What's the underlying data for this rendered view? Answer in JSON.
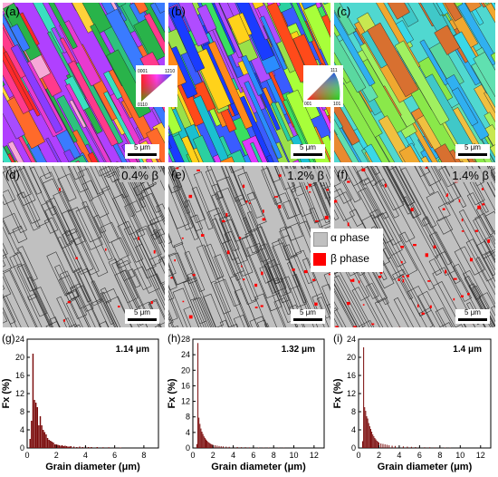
{
  "panels": {
    "a": {
      "label": "(a)",
      "scale": "5 μm"
    },
    "b": {
      "label": "(b)",
      "scale": "5 μm"
    },
    "c": {
      "label": "(c)",
      "scale": "5 μm"
    },
    "d": {
      "label": "(d)",
      "scale": "5 μm",
      "beta": "0.4% β"
    },
    "e": {
      "label": "(e)",
      "scale": "5 μm",
      "beta": "1.2% β"
    },
    "f": {
      "label": "(f)",
      "scale": "5 μm",
      "beta": "1.4% β"
    }
  },
  "ipf_keys": {
    "hex": {
      "top": "0001",
      "right": "1210",
      "bottom": "0110"
    },
    "cubic": {
      "top": "111",
      "left": "001",
      "right": "101"
    }
  },
  "legend": {
    "alpha": {
      "label": "α phase",
      "color": "#c0c0c0"
    },
    "beta": {
      "label": "β phase",
      "color": "#ff0000"
    }
  },
  "chart_data": [
    {
      "type": "bar",
      "panel_label": "(g)",
      "annotation": "1.14 μm",
      "xlabel": "Grain diameter (μm)",
      "ylabel": "Fx (%)",
      "xlim": [
        0,
        9
      ],
      "ylim": [
        0,
        24
      ],
      "xticks": [
        0,
        2,
        4,
        6,
        8
      ],
      "yticks": [
        0,
        4,
        8,
        12,
        16,
        20,
        24
      ],
      "bin_width": 0.1,
      "x": [
        0.2,
        0.3,
        0.4,
        0.5,
        0.6,
        0.7,
        0.8,
        0.9,
        1.0,
        1.1,
        1.2,
        1.3,
        1.4,
        1.5,
        1.6,
        1.7,
        1.8,
        1.9,
        2.0,
        2.1,
        2.2,
        2.3,
        2.4,
        2.5,
        2.6,
        2.7,
        2.8,
        2.9,
        3.0,
        3.2,
        3.4,
        3.6,
        3.8,
        4.0,
        4.2,
        4.4,
        4.8,
        5.2,
        5.6,
        6.0,
        6.4
      ],
      "values": [
        2.0,
        6.0,
        20.8,
        10.6,
        10.0,
        9.0,
        5.0,
        7.0,
        5.0,
        4.0,
        3.5,
        3.0,
        2.2,
        1.8,
        1.6,
        1.4,
        1.2,
        0.8,
        0.8,
        0.7,
        0.6,
        0.5,
        0.6,
        0.4,
        0.5,
        0.4,
        0.3,
        0.3,
        0.4,
        0.3,
        0.2,
        0.3,
        0.2,
        0.3,
        0.2,
        0.2,
        0.2,
        0.15,
        0.15,
        0.1,
        0.1
      ]
    },
    {
      "type": "bar",
      "panel_label": "(h)",
      "annotation": "1.32 μm",
      "xlabel": "Grain diameter (μm)",
      "ylabel": "Fx (%)",
      "xlim": [
        0,
        13
      ],
      "ylim": [
        0,
        28
      ],
      "xticks": [
        0,
        2,
        4,
        6,
        8,
        10,
        12
      ],
      "yticks": [
        0,
        4,
        8,
        12,
        16,
        20,
        24,
        28
      ],
      "bin_width": 0.1,
      "x": [
        0.4,
        0.5,
        0.6,
        0.7,
        0.8,
        0.9,
        1.0,
        1.1,
        1.2,
        1.3,
        1.4,
        1.5,
        1.6,
        1.7,
        1.8,
        1.9,
        2.0,
        2.2,
        2.4,
        2.6,
        2.8,
        3.0,
        3.3,
        3.6,
        4.0,
        4.4,
        4.8,
        5.2,
        5.6,
        6.0,
        6.5,
        7.0,
        7.5,
        8.0,
        8.5,
        9.0
      ],
      "values": [
        1.0,
        27.0,
        7.8,
        6.2,
        5.0,
        4.2,
        3.6,
        3.0,
        2.6,
        2.2,
        1.9,
        1.6,
        1.4,
        1.2,
        1.0,
        0.9,
        0.8,
        0.7,
        0.6,
        0.5,
        0.45,
        0.4,
        0.35,
        0.3,
        0.3,
        0.25,
        0.2,
        0.2,
        0.15,
        0.15,
        0.12,
        0.1,
        0.1,
        0.1,
        0.08,
        0.08
      ]
    },
    {
      "type": "bar",
      "panel_label": "(i)",
      "annotation": "1.4 μm",
      "xlabel": "Grain diameter (μm)",
      "ylabel": "Fx (%)",
      "xlim": [
        0,
        13
      ],
      "ylim": [
        0,
        24
      ],
      "xticks": [
        0,
        2,
        4,
        6,
        8,
        10,
        12
      ],
      "yticks": [
        0,
        4,
        8,
        12,
        16,
        20,
        24
      ],
      "bin_width": 0.1,
      "x": [
        0.4,
        0.5,
        0.6,
        0.7,
        0.8,
        0.9,
        1.0,
        1.1,
        1.2,
        1.3,
        1.4,
        1.5,
        1.6,
        1.7,
        1.8,
        1.9,
        2.0,
        2.2,
        2.4,
        2.6,
        2.8,
        3.0,
        3.3,
        3.6,
        4.0,
        4.4,
        4.8,
        5.2,
        5.6,
        6.0,
        6.5,
        7.0,
        7.5,
        8.0,
        8.5,
        9.0
      ],
      "values": [
        1.5,
        22.2,
        9.0,
        8.2,
        7.0,
        6.5,
        5.5,
        4.8,
        4.2,
        3.6,
        3.0,
        2.6,
        2.2,
        1.9,
        1.6,
        1.4,
        1.2,
        1.0,
        0.9,
        0.8,
        0.7,
        0.6,
        0.5,
        0.45,
        0.4,
        0.35,
        0.3,
        0.25,
        0.2,
        0.2,
        0.15,
        0.15,
        0.12,
        0.1,
        0.1,
        0.08
      ]
    }
  ]
}
